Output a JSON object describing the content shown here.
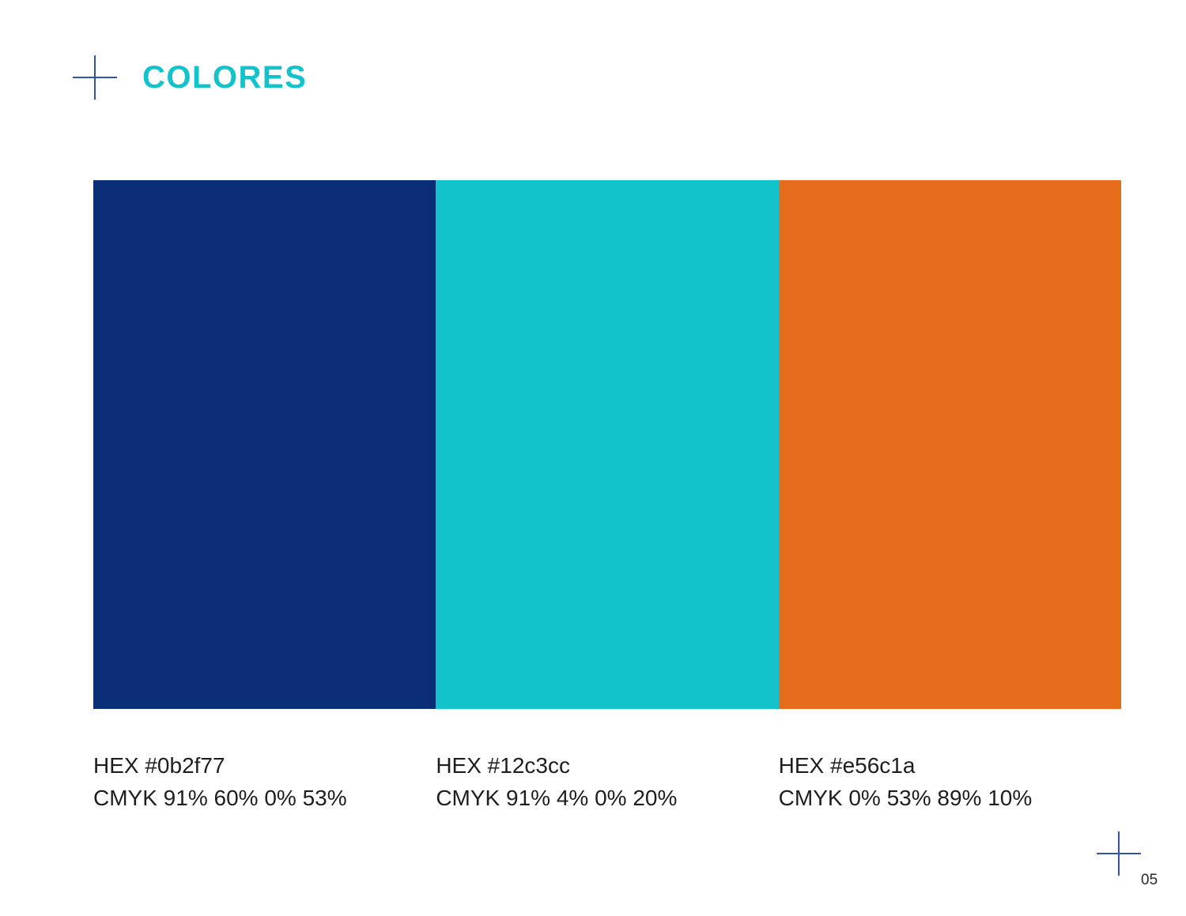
{
  "page": {
    "title": "COLORES",
    "page_number": "05",
    "title_color": "#12c3cc",
    "cross_color": "#2d55a5",
    "background_color": "#ffffff"
  },
  "swatches": [
    {
      "name": "navy",
      "color": "#0b2f77",
      "hex_label": "HEX #0b2f77",
      "cmyk_label": "CMYK 91% 60% 0% 53%"
    },
    {
      "name": "teal",
      "color": "#12c3cc",
      "hex_label": "HEX #12c3cc",
      "cmyk_label": "CMYK 91% 4% 0% 20%"
    },
    {
      "name": "orange",
      "color": "#e56c1a",
      "hex_label": "HEX #e56c1a",
      "cmyk_label": "CMYK 0% 53% 89% 10%"
    }
  ]
}
